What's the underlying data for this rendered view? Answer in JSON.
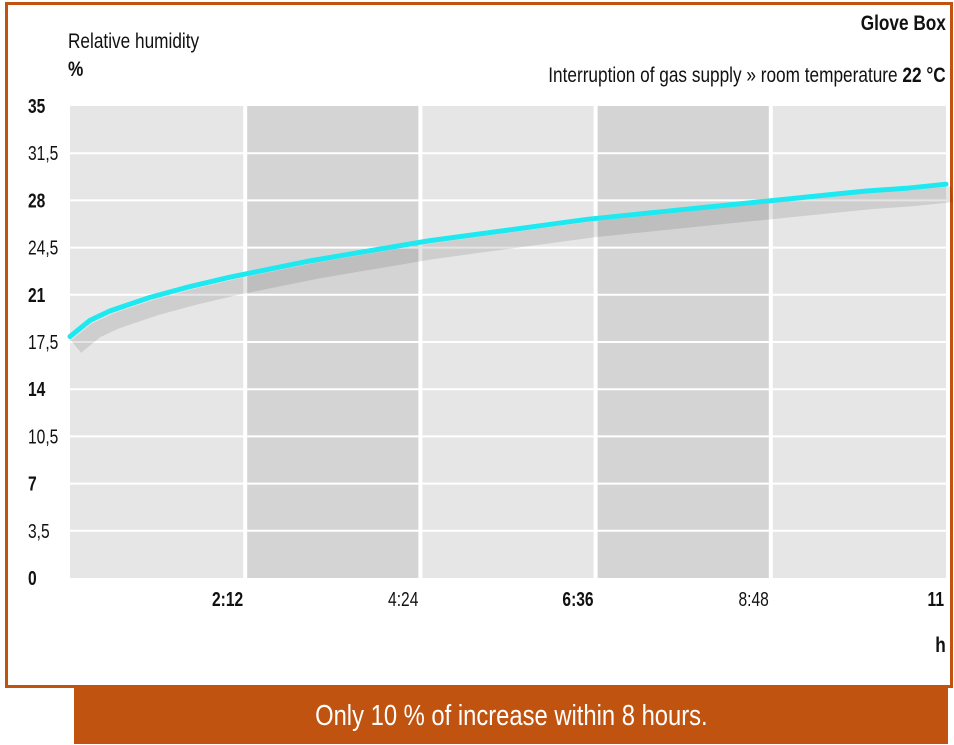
{
  "chart_data": {
    "type": "line",
    "title": "Glove Box",
    "subtitle_prefix": "Interruption of gas supply » room temperature",
    "subtitle_value": "22 °C",
    "ylabel": "Relative humidity",
    "yunit": "%",
    "xunit": "h",
    "ylim": [
      0,
      35
    ],
    "xlim": [
      0,
      11
    ],
    "yticks": [
      {
        "value": 0,
        "label": "0",
        "bold": true
      },
      {
        "value": 3.5,
        "label": "3,5",
        "bold": false
      },
      {
        "value": 7,
        "label": "7",
        "bold": true
      },
      {
        "value": 10.5,
        "label": "10,5",
        "bold": false
      },
      {
        "value": 14,
        "label": "14",
        "bold": true
      },
      {
        "value": 17.5,
        "label": "17,5",
        "bold": false
      },
      {
        "value": 21,
        "label": "21",
        "bold": true
      },
      {
        "value": 24.5,
        "label": "24,5",
        "bold": false
      },
      {
        "value": 28,
        "label": "28",
        "bold": true
      },
      {
        "value": 31.5,
        "label": "31,5",
        "bold": false
      },
      {
        "value": 35,
        "label": "35",
        "bold": true
      }
    ],
    "xticks": [
      {
        "value": 2.2,
        "label": "2:12",
        "bold": true
      },
      {
        "value": 4.4,
        "label": "4:24",
        "bold": false
      },
      {
        "value": 6.6,
        "label": "6:36",
        "bold": true
      },
      {
        "value": 8.8,
        "label": "8:48",
        "bold": false
      },
      {
        "value": 11,
        "label": "11",
        "bold": true
      }
    ],
    "shaded_bands": [
      [
        2.2,
        4.4
      ],
      [
        6.6,
        8.8
      ]
    ],
    "series": [
      {
        "color": "#1ee8f0",
        "x": [
          0,
          0.25,
          0.5,
          1,
          1.5,
          2,
          2.5,
          3,
          3.5,
          4,
          4.5,
          5,
          5.5,
          6,
          6.5,
          7,
          7.5,
          8,
          8.5,
          9,
          9.5,
          10,
          10.5,
          11
        ],
        "y": [
          17.9,
          19.1,
          19.8,
          20.8,
          21.6,
          22.3,
          22.9,
          23.5,
          24.0,
          24.5,
          25.0,
          25.4,
          25.8,
          26.2,
          26.6,
          26.9,
          27.2,
          27.5,
          27.8,
          28.1,
          28.4,
          28.7,
          28.9,
          29.2
        ]
      }
    ],
    "grid": true
  },
  "banner": {
    "text": "Only 10 % of increase within 8 hours."
  },
  "colors": {
    "accent": "#c0530f",
    "plot_bg": "#e6e6e6",
    "band_bg": "#d4d4d4",
    "grid": "#ffffff",
    "line": "#1ee8f0"
  }
}
